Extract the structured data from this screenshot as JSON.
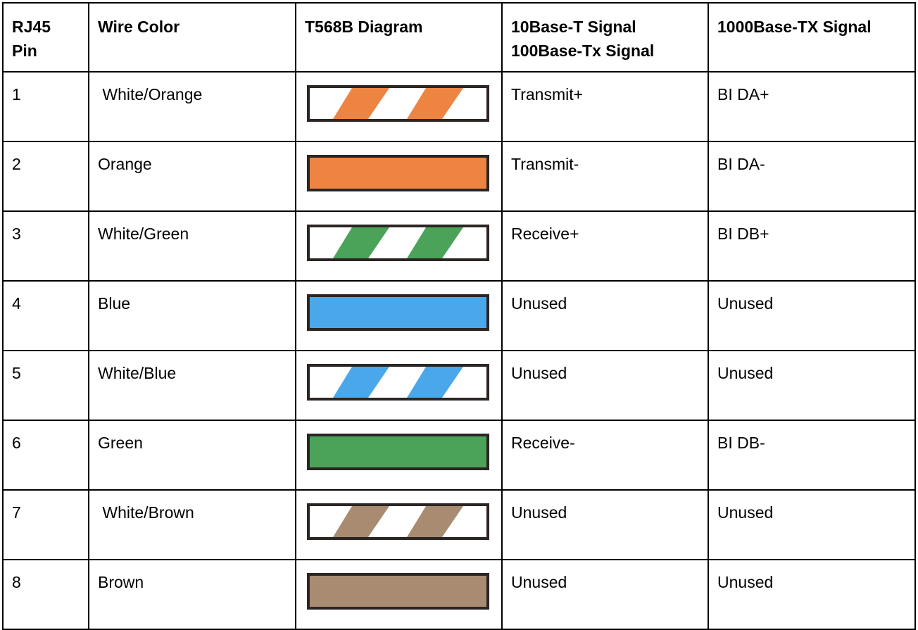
{
  "headers": [
    "RJ45 Pin",
    "Wire Color",
    "T568B Diagram",
    "10Base-T Signal 100Base-Tx Signal",
    "1000Base-TX Signal"
  ],
  "header_lines": {
    "pin": [
      "RJ45",
      "Pin"
    ],
    "signal10": [
      "10Base-T Signal",
      "100Base-Tx Signal"
    ]
  },
  "rows": [
    {
      "pin": "1",
      "color": " White/Orange",
      "striped": true,
      "wire_hex": "#EE8442",
      "sig100": "Transmit+",
      "sig1000": "BI DA+"
    },
    {
      "pin": "2",
      "color": "Orange",
      "striped": false,
      "wire_hex": "#EE8442",
      "sig100": "Transmit-",
      "sig1000": "BI DA-"
    },
    {
      "pin": "3",
      "color": "White/Green",
      "striped": true,
      "wire_hex": "#4BA35A",
      "sig100": "Receive+",
      "sig1000": "BI DB+"
    },
    {
      "pin": "4",
      "color": "Blue",
      "striped": false,
      "wire_hex": "#4AA8EA",
      "sig100": "Unused",
      "sig1000": "Unused"
    },
    {
      "pin": "5",
      "color": "White/Blue",
      "striped": true,
      "wire_hex": "#4AA8EA",
      "sig100": "Unused",
      "sig1000": "Unused"
    },
    {
      "pin": "6",
      "color": "Green",
      "striped": false,
      "wire_hex": "#4BA35A",
      "sig100": "Receive-",
      "sig1000": "BI DB-"
    },
    {
      "pin": "7",
      "color": " White/Brown",
      "striped": true,
      "wire_hex": "#A88B71",
      "sig100": "Unused",
      "sig1000": "Unused"
    },
    {
      "pin": "8",
      "color": "Brown",
      "striped": false,
      "wire_hex": "#A88B71",
      "sig100": "Unused",
      "sig1000": "Unused"
    }
  ]
}
